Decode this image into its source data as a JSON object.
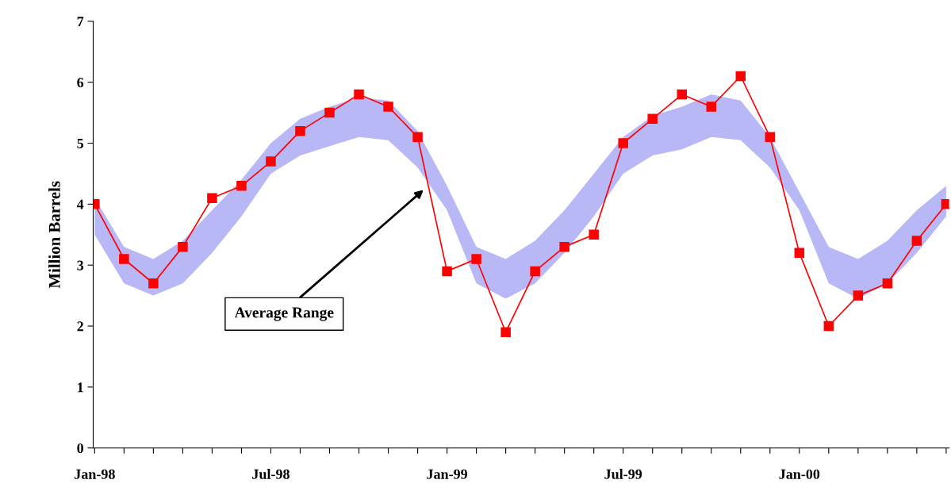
{
  "chart_data": {
    "type": "line",
    "ylabel": "Million Barrels",
    "categories": [
      "Jan-98",
      null,
      null,
      null,
      null,
      null,
      "Jul-98",
      null,
      null,
      null,
      null,
      null,
      "Jan-99",
      null,
      null,
      null,
      null,
      null,
      "Jul-99",
      null,
      null,
      null,
      null,
      null,
      "Jan-00",
      null,
      null,
      null,
      null,
      null
    ],
    "series": [
      {
        "color": "#ff0000",
        "marker": "square",
        "line_style": "solid",
        "values": [
          4.0,
          3.1,
          2.7,
          3.3,
          4.1,
          4.3,
          4.7,
          5.2,
          5.5,
          5.8,
          5.6,
          5.1,
          2.9,
          3.1,
          1.9,
          2.9,
          3.3,
          3.5,
          5.0,
          5.4,
          5.8,
          5.6,
          6.1,
          5.1,
          3.2,
          2.0,
          2.5,
          2.7,
          3.4,
          4.0
        ],
        "lower": [
          3.5,
          2.7,
          2.5,
          2.7,
          3.2,
          3.8,
          4.5,
          4.8,
          4.95,
          5.1,
          5.05,
          4.6,
          3.9,
          2.7,
          2.45,
          2.7,
          3.2,
          3.8,
          4.5,
          4.8,
          4.9,
          5.1,
          5.05,
          4.6,
          3.9,
          2.7,
          2.45,
          2.7,
          3.2,
          3.8
        ],
        "upper": [
          4.1,
          3.3,
          3.1,
          3.4,
          3.9,
          4.4,
          5.0,
          5.4,
          5.6,
          5.75,
          5.7,
          5.2,
          4.3,
          3.3,
          3.1,
          3.4,
          3.9,
          4.5,
          5.1,
          5.45,
          5.6,
          5.8,
          5.7,
          5.1,
          4.2,
          3.3,
          3.1,
          3.4,
          3.9,
          4.3
        ]
      }
    ],
    "ylim": [
      0,
      7
    ],
    "yticks": [
      0,
      1,
      2,
      3,
      4,
      5,
      6,
      7
    ],
    "grid": false,
    "legend": false,
    "annotations": [
      "Average Range"
    ]
  }
}
